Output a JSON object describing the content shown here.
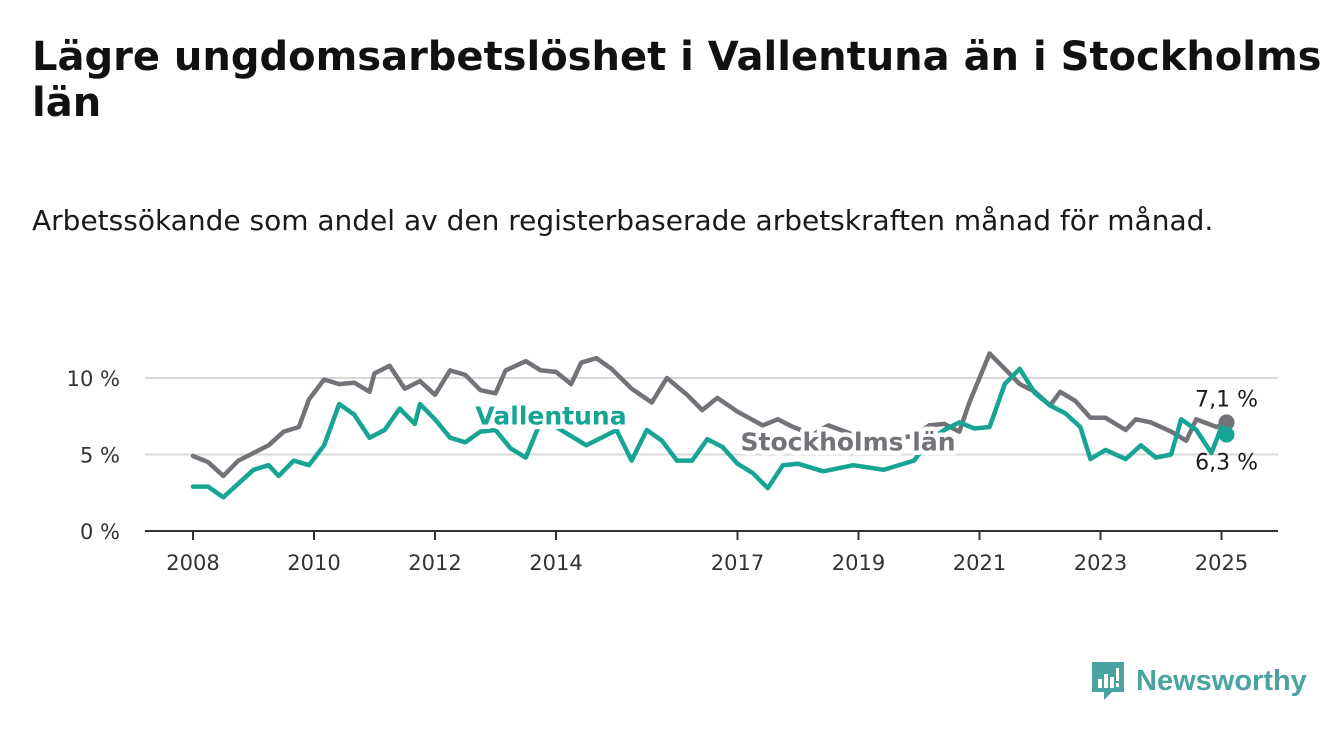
{
  "title": "Lägre ungdomsarbetslöshet i Vallentuna än i Stockholms län",
  "subtitle": "Arbetssökande som andel av den registerbaserade arbetskraften månad för månad.",
  "brand": {
    "name": "Newsworthy",
    "color": "#4aa3a0",
    "icon": "bar-chart-logo-icon"
  },
  "chart_data": {
    "type": "line",
    "x_ticks": [
      "2008",
      "2010",
      "2012",
      "2014",
      "2017",
      "2019",
      "2021",
      "2023",
      "2025"
    ],
    "y_ticks": [
      "0 %",
      "5 %",
      "10 %"
    ],
    "ylim": [
      0,
      10
    ],
    "x_range": [
      "2008-01",
      "2025-02"
    ],
    "grid": true,
    "series": [
      {
        "name": "Stockholms län",
        "color": "#737278",
        "end_label": "7,1 %",
        "points": [
          [
            "2008-01",
            4.9
          ],
          [
            "2008-04",
            4.5
          ],
          [
            "2008-07",
            3.6
          ],
          [
            "2008-10",
            4.6
          ],
          [
            "2009-01",
            5.1
          ],
          [
            "2009-04",
            5.6
          ],
          [
            "2009-07",
            6.5
          ],
          [
            "2009-10",
            6.8
          ],
          [
            "2009-12",
            8.6
          ],
          [
            "2010-03",
            9.9
          ],
          [
            "2010-06",
            9.6
          ],
          [
            "2010-09",
            9.7
          ],
          [
            "2010-12",
            9.1
          ],
          [
            "2011-01",
            10.3
          ],
          [
            "2011-04",
            10.8
          ],
          [
            "2011-07",
            9.3
          ],
          [
            "2011-10",
            9.8
          ],
          [
            "2012-01",
            8.9
          ],
          [
            "2012-04",
            10.5
          ],
          [
            "2012-07",
            10.2
          ],
          [
            "2012-10",
            9.2
          ],
          [
            "2013-01",
            9.0
          ],
          [
            "2013-03",
            10.5
          ],
          [
            "2013-07",
            11.1
          ],
          [
            "2013-10",
            10.5
          ],
          [
            "2014-01",
            10.4
          ],
          [
            "2014-04",
            9.6
          ],
          [
            "2014-06",
            11.0
          ],
          [
            "2014-09",
            11.3
          ],
          [
            "2014-12",
            10.6
          ],
          [
            "2015-04",
            9.3
          ],
          [
            "2015-08",
            8.4
          ],
          [
            "2015-11",
            10.0
          ],
          [
            "2016-03",
            8.9
          ],
          [
            "2016-06",
            7.9
          ],
          [
            "2016-09",
            8.7
          ],
          [
            "2017-01",
            7.8
          ],
          [
            "2017-06",
            6.9
          ],
          [
            "2017-09",
            7.3
          ],
          [
            "2017-12",
            6.8
          ],
          [
            "2018-04",
            6.3
          ],
          [
            "2018-07",
            6.9
          ],
          [
            "2018-12",
            6.3
          ],
          [
            "2019-06",
            6.0
          ],
          [
            "2019-12",
            6.2
          ],
          [
            "2020-03",
            6.9
          ],
          [
            "2020-06",
            7.0
          ],
          [
            "2020-09",
            6.5
          ],
          [
            "2020-11",
            8.4
          ],
          [
            "2021-03",
            11.6
          ],
          [
            "2021-06",
            10.6
          ],
          [
            "2021-09",
            9.6
          ],
          [
            "2021-12",
            9.1
          ],
          [
            "2022-03",
            8.2
          ],
          [
            "2022-05",
            9.1
          ],
          [
            "2022-08",
            8.5
          ],
          [
            "2022-11",
            7.4
          ],
          [
            "2023-02",
            7.4
          ],
          [
            "2023-06",
            6.6
          ],
          [
            "2023-08",
            7.3
          ],
          [
            "2023-11",
            7.1
          ],
          [
            "2024-03",
            6.5
          ],
          [
            "2024-06",
            5.9
          ],
          [
            "2024-08",
            7.3
          ],
          [
            "2024-12",
            6.8
          ],
          [
            "2025-02",
            7.1
          ]
        ]
      },
      {
        "name": "Vallentuna",
        "color": "#16a595",
        "end_label": "6,3 %",
        "points": [
          [
            "2008-01",
            2.9
          ],
          [
            "2008-04",
            2.9
          ],
          [
            "2008-07",
            2.2
          ],
          [
            "2008-10",
            3.1
          ],
          [
            "2009-01",
            4.0
          ],
          [
            "2009-04",
            4.3
          ],
          [
            "2009-06",
            3.6
          ],
          [
            "2009-09",
            4.6
          ],
          [
            "2009-12",
            4.3
          ],
          [
            "2010-03",
            5.6
          ],
          [
            "2010-06",
            8.3
          ],
          [
            "2010-09",
            7.6
          ],
          [
            "2010-12",
            6.1
          ],
          [
            "2011-03",
            6.6
          ],
          [
            "2011-06",
            8.0
          ],
          [
            "2011-09",
            7.0
          ],
          [
            "2011-10",
            8.3
          ],
          [
            "2012-01",
            7.3
          ],
          [
            "2012-04",
            6.1
          ],
          [
            "2012-07",
            5.8
          ],
          [
            "2012-10",
            6.5
          ],
          [
            "2013-01",
            6.6
          ],
          [
            "2013-04",
            5.4
          ],
          [
            "2013-07",
            4.8
          ],
          [
            "2013-10",
            7.2
          ],
          [
            "2014-01",
            6.8
          ],
          [
            "2014-04",
            6.2
          ],
          [
            "2014-07",
            5.6
          ],
          [
            "2014-10",
            6.1
          ],
          [
            "2015-01",
            6.6
          ],
          [
            "2015-04",
            4.6
          ],
          [
            "2015-07",
            6.6
          ],
          [
            "2015-10",
            5.9
          ],
          [
            "2016-01",
            4.6
          ],
          [
            "2016-04",
            4.6
          ],
          [
            "2016-07",
            6.0
          ],
          [
            "2016-10",
            5.5
          ],
          [
            "2017-01",
            4.4
          ],
          [
            "2017-04",
            3.8
          ],
          [
            "2017-07",
            2.8
          ],
          [
            "2017-10",
            4.3
          ],
          [
            "2018-01",
            4.4
          ],
          [
            "2018-06",
            3.9
          ],
          [
            "2018-12",
            4.3
          ],
          [
            "2019-06",
            4.0
          ],
          [
            "2019-12",
            4.6
          ],
          [
            "2020-03",
            5.9
          ],
          [
            "2020-06",
            6.6
          ],
          [
            "2020-09",
            7.1
          ],
          [
            "2020-12",
            6.7
          ],
          [
            "2021-03",
            6.8
          ],
          [
            "2021-06",
            9.6
          ],
          [
            "2021-09",
            10.6
          ],
          [
            "2021-12",
            9.0
          ],
          [
            "2022-03",
            8.2
          ],
          [
            "2022-06",
            7.7
          ],
          [
            "2022-09",
            6.8
          ],
          [
            "2022-11",
            4.7
          ],
          [
            "2023-02",
            5.3
          ],
          [
            "2023-06",
            4.7
          ],
          [
            "2023-09",
            5.6
          ],
          [
            "2023-12",
            4.8
          ],
          [
            "2024-03",
            5.0
          ],
          [
            "2024-05",
            7.3
          ],
          [
            "2024-08",
            6.6
          ],
          [
            "2024-11",
            5.1
          ],
          [
            "2025-01",
            6.8
          ],
          [
            "2025-02",
            6.3
          ]
        ]
      }
    ]
  }
}
